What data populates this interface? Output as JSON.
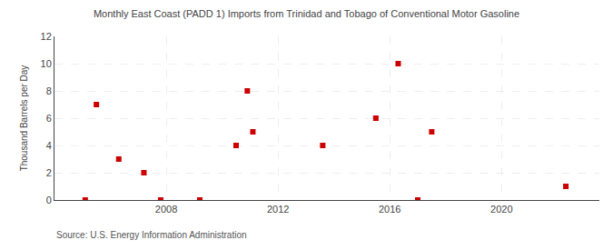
{
  "chart_data": {
    "type": "scatter",
    "title": "Monthly East Coast (PADD 1) Imports from Trinidad and Tobago of Conventional Motor Gasoline",
    "y_label": "Thousand Barrels per Day",
    "annotations": [
      "Source: U.S. Energy Information Administration"
    ],
    "x": [
      2005.1,
      2005.5,
      2006.3,
      2007.2,
      2007.8,
      2009.2,
      2010.5,
      2010.9,
      2011.1,
      2013.6,
      2015.5,
      2016.3,
      2017.0,
      2017.5,
      2022.3
    ],
    "values": [
      0,
      7,
      3,
      2,
      0,
      0,
      4,
      8,
      5,
      4,
      6,
      10,
      0,
      5,
      1
    ],
    "color": "#cc0000",
    "marker": "square",
    "xlim": [
      2004.0,
      2023.5
    ],
    "ylim": [
      0,
      12
    ],
    "xticks": [
      2008,
      2012,
      2016,
      2020
    ],
    "yticks": [
      0,
      2,
      4,
      6,
      8,
      10,
      12
    ],
    "grid": true
  }
}
